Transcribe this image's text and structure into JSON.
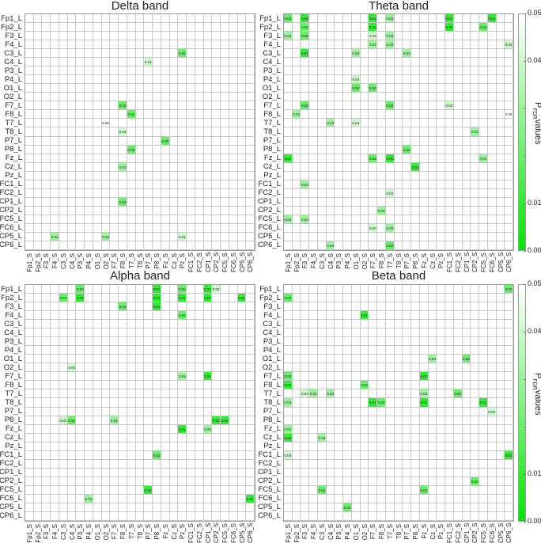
{
  "chart_data": [
    {
      "type": "heatmap",
      "title": "Delta band",
      "rows": [
        "Fp1_L",
        "Fp2_L",
        "F3_L",
        "F4_L",
        "C3_L",
        "C4_L",
        "P3_L",
        "P4_L",
        "O1_L",
        "O2_L",
        "F7_L",
        "F8_L",
        "T7_L",
        "T8_L",
        "P7_L",
        "P8_L",
        "Fz_L",
        "Cz_L",
        "Pz_L",
        "FC1_L",
        "FC2_L",
        "CP1_L",
        "CP2_L",
        "FC5_L",
        "FC6_L",
        "CP5_L",
        "CP6_L"
      ],
      "columns": [
        "Fp1_S",
        "Fp2_S",
        "F3_S",
        "F4_S",
        "C3_S",
        "C4_S",
        "P3_S",
        "P4_S",
        "O1_S",
        "O2_S",
        "F7_S",
        "F8_S",
        "T7_S",
        "T8_S",
        "P7_S",
        "P8_S",
        "Fz_S",
        "Cz_S",
        "Pz_S",
        "FC1_S",
        "FC2_S",
        "CP1_S",
        "CP2_S",
        "FC5_S",
        "FC6_S",
        "CP5_S",
        "CP6_S"
      ],
      "significant_cells": [
        [
          "C3_L",
          "Pz_S",
          0.02
        ],
        [
          "C4_L",
          "P7_S",
          0.04
        ],
        [
          "F7_L",
          "F8_S",
          0.02
        ],
        [
          "F8_L",
          "T7_S",
          0.02
        ],
        [
          "T7_L",
          "O2_S",
          0.05
        ],
        [
          "T8_L",
          "F8_S",
          0.04
        ],
        [
          "P7_L",
          "Fz_S",
          0.02
        ],
        [
          "P8_L",
          "T7_S",
          0.02
        ],
        [
          "Cz_L",
          "F8_S",
          0.03
        ],
        [
          "CP1_L",
          "F8_S",
          0.02
        ],
        [
          "CP5_L",
          "F4_S",
          0.03
        ],
        [
          "CP5_L",
          "O2_S",
          0.03
        ],
        [
          "CP5_L",
          "Pz_S",
          0.04
        ]
      ]
    },
    {
      "type": "heatmap",
      "title": "Theta band",
      "rows": [
        "Fp1_L",
        "Fp2_L",
        "F3_L",
        "F4_L",
        "C3_L",
        "C4_L",
        "P3_L",
        "P4_L",
        "O1_L",
        "O2_L",
        "F7_L",
        "F8_L",
        "T7_L",
        "T8_L",
        "P7_L",
        "P8_L",
        "Fz_L",
        "Cz_L",
        "Pz_L",
        "FC1_L",
        "FC2_L",
        "CP1_L",
        "CP2_L",
        "FC5_L",
        "FC6_L",
        "CP5_L",
        "CP6_L"
      ],
      "columns": [
        "Fp1_S",
        "Fp2_S",
        "F3_S",
        "F4_S",
        "C3_S",
        "C4_S",
        "P3_S",
        "P4_S",
        "O1_S",
        "O2_S",
        "F7_S",
        "F8_S",
        "T7_S",
        "T8_S",
        "P7_S",
        "P8_S",
        "Fz_S",
        "Cz_S",
        "Pz_S",
        "FC1_S",
        "FC2_S",
        "CP1_S",
        "CP2_S",
        "FC5_S",
        "FC6_S",
        "CP5_S",
        "CP6_S"
      ],
      "significant_cells": [
        [
          "Fp1_L",
          "Fp1_S",
          0.02
        ],
        [
          "Fp1_L",
          "F3_S",
          0.01
        ],
        [
          "Fp1_L",
          "F7_S",
          0.01
        ],
        [
          "Fp1_L",
          "T7_S",
          0.03
        ],
        [
          "Fp1_L",
          "FC1_S",
          0.01
        ],
        [
          "Fp1_L",
          "FC6_S",
          0.01
        ],
        [
          "Fp2_L",
          "F3_S",
          0.02
        ],
        [
          "Fp2_L",
          "F7_S",
          0.01
        ],
        [
          "Fp2_L",
          "FC1_S",
          0.01
        ],
        [
          "Fp2_L",
          "FC5_S",
          0.02
        ],
        [
          "F3_L",
          "Fp1_S",
          0.03
        ],
        [
          "F3_L",
          "F3_S",
          0.02
        ],
        [
          "F3_L",
          "F7_S",
          0.04
        ],
        [
          "F3_L",
          "T7_S",
          0.03
        ],
        [
          "F4_L",
          "F7_S",
          0.03
        ],
        [
          "F4_L",
          "T7_S",
          0.03
        ],
        [
          "F4_L",
          "CP6_S",
          0.04
        ],
        [
          "C3_L",
          "F3_S",
          0.01
        ],
        [
          "C3_L",
          "O1_S",
          0.03
        ],
        [
          "C3_L",
          "P7_S",
          0.03
        ],
        [
          "P4_L",
          "O1_S",
          0.04
        ],
        [
          "O1_L",
          "O1_S",
          0.02
        ],
        [
          "O1_L",
          "F7_S",
          0.02
        ],
        [
          "F7_L",
          "F3_S",
          0.02
        ],
        [
          "F7_L",
          "T7_S",
          0.02
        ],
        [
          "F7_L",
          "FC1_S",
          0.04
        ],
        [
          "F8_L",
          "Fp2_S",
          0.03
        ],
        [
          "F8_L",
          "CP6_S",
          0.05
        ],
        [
          "T7_L",
          "C4_S",
          0.03
        ],
        [
          "T7_L",
          "O1_S",
          0.04
        ],
        [
          "T8_L",
          "CP2_S",
          0.03
        ],
        [
          "P8_L",
          "P7_S",
          0.02
        ],
        [
          "Fz_L",
          "Fp1_S",
          0.01
        ],
        [
          "Fz_L",
          "F7_S",
          0.02
        ],
        [
          "Fz_L",
          "T7_S",
          0.01
        ],
        [
          "Fz_L",
          "FC5_S",
          0.03
        ],
        [
          "Cz_L",
          "P8_S",
          0.01
        ],
        [
          "FC1_L",
          "F3_S",
          0.03
        ],
        [
          "FC2_L",
          "T7_S",
          0.04
        ],
        [
          "CP2_L",
          "F8_S",
          0.03
        ],
        [
          "FC5_L",
          "Fp1_S",
          0.03
        ],
        [
          "FC5_L",
          "F3_S",
          0.03
        ],
        [
          "FC6_L",
          "F7_S",
          0.04
        ],
        [
          "FC6_L",
          "T7_S",
          0.03
        ],
        [
          "CP6_L",
          "C4_S",
          0.03
        ],
        [
          "CP6_L",
          "T7_S",
          0.02
        ]
      ]
    },
    {
      "type": "heatmap",
      "title": "Alpha band",
      "rows": [
        "Fp1_L",
        "Fp2_L",
        "F3_L",
        "F4_L",
        "C3_L",
        "C4_L",
        "P3_L",
        "P4_L",
        "O1_L",
        "O2_L",
        "F7_L",
        "F8_L",
        "T7_L",
        "T8_L",
        "P7_L",
        "P8_L",
        "Fz_L",
        "Cz_L",
        "Pz_L",
        "FC1_L",
        "FC2_L",
        "CP1_L",
        "CP2_L",
        "FC5_L",
        "FC6_L",
        "CP5_L",
        "CP6_L"
      ],
      "columns": [
        "Fp1_S",
        "Fp2_S",
        "F3_S",
        "F4_S",
        "C3_S",
        "C4_S",
        "P3_S",
        "P4_S",
        "O1_S",
        "O2_S",
        "F7_S",
        "F8_S",
        "T7_S",
        "T8_S",
        "P7_S",
        "P8_S",
        "Fz_S",
        "Cz_S",
        "Pz_S",
        "FC1_S",
        "FC2_S",
        "CP1_S",
        "CP2_S",
        "FC5_S",
        "FC6_S",
        "CP5_S",
        "CP6_S"
      ],
      "significant_cells": [
        [
          "Fp1_L",
          "P3_S",
          0.02
        ],
        [
          "Fp1_L",
          "P8_S",
          0.01
        ],
        [
          "Fp1_L",
          "Pz_S",
          0.02
        ],
        [
          "Fp1_L",
          "CP1_S",
          0.01
        ],
        [
          "Fp1_L",
          "CP2_S",
          0.04
        ],
        [
          "Fp2_L",
          "C3_S",
          0.02
        ],
        [
          "Fp2_L",
          "P3_S",
          0.01
        ],
        [
          "Fp2_L",
          "P8_S",
          0.01
        ],
        [
          "Fp2_L",
          "Pz_S",
          0.01
        ],
        [
          "Fp2_L",
          "CP1_S",
          0.01
        ],
        [
          "Fp2_L",
          "CP5_S",
          0.01
        ],
        [
          "F3_L",
          "F8_S",
          0.02
        ],
        [
          "F3_L",
          "P8_S",
          0.01
        ],
        [
          "F4_L",
          "Pz_S",
          0.02
        ],
        [
          "O2_L",
          "C4_S",
          0.04
        ],
        [
          "F7_L",
          "Pz_S",
          0.03
        ],
        [
          "F7_L",
          "CP1_S",
          0.01
        ],
        [
          "P8_L",
          "C3_S",
          0.04
        ],
        [
          "P8_L",
          "C4_S",
          0.02
        ],
        [
          "P8_L",
          "F7_S",
          0.03
        ],
        [
          "P8_L",
          "CP2_S",
          0.01
        ],
        [
          "P8_L",
          "FC5_S",
          0.01
        ],
        [
          "Fz_L",
          "Pz_S",
          0.01
        ],
        [
          "Fz_L",
          "CP1_S",
          0.03
        ],
        [
          "FC1_L",
          "P8_S",
          0.02
        ],
        [
          "FC5_L",
          "P7_S",
          0.01
        ],
        [
          "FC6_L",
          "P4_S",
          0.03
        ],
        [
          "FC6_L",
          "CP6_S",
          0.01
        ]
      ]
    },
    {
      "type": "heatmap",
      "title": "Beta band",
      "rows": [
        "Fp1_L",
        "Fp2_L",
        "F3_L",
        "F4_L",
        "C3_L",
        "C4_L",
        "P3_L",
        "P4_L",
        "O1_L",
        "O2_L",
        "F7_L",
        "F8_L",
        "T7_L",
        "T8_L",
        "P7_L",
        "P8_L",
        "Fz_L",
        "Cz_L",
        "Pz_L",
        "FC1_L",
        "FC2_L",
        "CP1_L",
        "CP2_L",
        "FC5_L",
        "FC6_L",
        "CP5_L",
        "CP6_L"
      ],
      "columns": [
        "Fp1_S",
        "Fp2_S",
        "F3_S",
        "F4_S",
        "C3_S",
        "C4_S",
        "P3_S",
        "P4_S",
        "O1_S",
        "O2_S",
        "F7_S",
        "F8_S",
        "T7_S",
        "T8_S",
        "P7_S",
        "P8_S",
        "Fz_S",
        "Cz_S",
        "Pz_S",
        "FC1_S",
        "FC2_S",
        "CP1_S",
        "CP2_S",
        "FC5_S",
        "FC6_S",
        "CP5_S",
        "CP6_S"
      ],
      "significant_cells": [
        [
          "Fp1_L",
          "CP6_S",
          0.02
        ],
        [
          "Fp2_L",
          "Fp1_S",
          0.02
        ],
        [
          "F4_L",
          "O2_S",
          0.01
        ],
        [
          "O1_L",
          "Cz_S",
          0.03
        ],
        [
          "O1_L",
          "CP1_S",
          0.02
        ],
        [
          "F7_L",
          "Fp1_S",
          0.02
        ],
        [
          "F7_L",
          "Fz_S",
          0.01
        ],
        [
          "F8_L",
          "Fp1_S",
          0.01
        ],
        [
          "F8_L",
          "O2_S",
          0.02
        ],
        [
          "T7_L",
          "F3_S",
          0.04
        ],
        [
          "T7_L",
          "F4_S",
          0.03
        ],
        [
          "T7_L",
          "C4_S",
          0.03
        ],
        [
          "T7_L",
          "Fz_S",
          0.03
        ],
        [
          "T7_L",
          "FC2_S",
          0.02
        ],
        [
          "T8_L",
          "Fp1_S",
          0.03
        ],
        [
          "T8_L",
          "F7_S",
          0.01
        ],
        [
          "T8_L",
          "F8_S",
          0.02
        ],
        [
          "T8_L",
          "Fz_S",
          0.01
        ],
        [
          "T8_L",
          "FC5_S",
          0.01
        ],
        [
          "P7_L",
          "FC6_S",
          0.04
        ],
        [
          "Fz_L",
          "Fp1_S",
          0.03
        ],
        [
          "Cz_L",
          "Fp1_S",
          0.01
        ],
        [
          "Cz_L",
          "C3_S",
          0.03
        ],
        [
          "FC1_L",
          "Fp1_S",
          0.04
        ],
        [
          "FC1_L",
          "CP6_S",
          0.01
        ],
        [
          "CP2_L",
          "CP2_S",
          0.02
        ],
        [
          "FC5_L",
          "C3_S",
          0.02
        ],
        [
          "FC5_L",
          "Fz_S",
          0.02
        ],
        [
          "CP5_L",
          "P4_S",
          0.02
        ]
      ]
    }
  ],
  "colorbar": {
    "label_main": "P",
    "label_sub": "FDR",
    "label_rest": "values",
    "range": [
      0.0,
      0.05
    ],
    "ticks": [
      "0.05",
      "0.04",
      "0.01",
      "0.00"
    ],
    "color_low": "#00e600",
    "color_high": "#ffffff"
  }
}
